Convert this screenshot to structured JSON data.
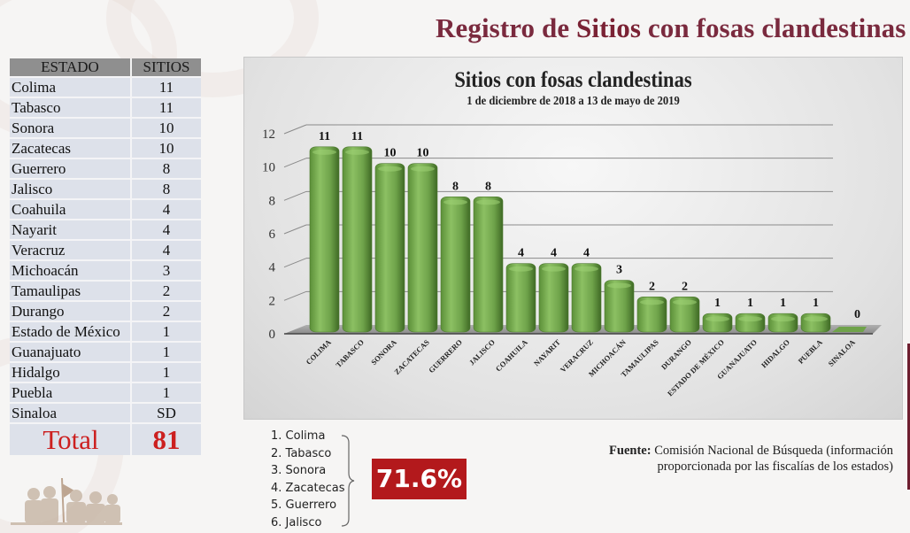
{
  "header": {
    "title_pre": "Registro de ",
    "title_bold": "Sitios",
    "title_post": " con fosas clandestinas"
  },
  "table": {
    "headers": [
      "ESTADO",
      "SITIOS"
    ],
    "rows": [
      {
        "estado": "Colima",
        "sitios": "11"
      },
      {
        "estado": "Tabasco",
        "sitios": "11"
      },
      {
        "estado": "Sonora",
        "sitios": "10"
      },
      {
        "estado": "Zacatecas",
        "sitios": "10"
      },
      {
        "estado": "Guerrero",
        "sitios": "8"
      },
      {
        "estado": "Jalisco",
        "sitios": "8"
      },
      {
        "estado": "Coahuila",
        "sitios": "4"
      },
      {
        "estado": "Nayarit",
        "sitios": "4"
      },
      {
        "estado": "Veracruz",
        "sitios": "4"
      },
      {
        "estado": "Michoacán",
        "sitios": "3"
      },
      {
        "estado": "Tamaulipas",
        "sitios": "2"
      },
      {
        "estado": "Durango",
        "sitios": "2"
      },
      {
        "estado": "Estado de México",
        "sitios": "1"
      },
      {
        "estado": "Guanajuato",
        "sitios": "1"
      },
      {
        "estado": "Hidalgo",
        "sitios": "1"
      },
      {
        "estado": "Puebla",
        "sitios": "1"
      },
      {
        "estado": "Sinaloa",
        "sitios": "SD"
      }
    ],
    "total_label": "Total",
    "total_value": "81"
  },
  "chart_data": {
    "type": "bar",
    "title": "Sitios con fosas clandestinas",
    "subtitle": "1 de diciembre de 2018 a 13 de mayo de 2019",
    "categories": [
      "COLIMA",
      "TABASCO",
      "SONORA",
      "ZACATECAS",
      "GUERRERO",
      "JALISCO",
      "COAHUILA",
      "NAYARIT",
      "VERACRUZ",
      "MICHOACÁN",
      "TAMAULIPAS",
      "DURANGO",
      "ESTADO DE MÉXICO",
      "GUANAJUATO",
      "HIDALGO",
      "PUEBLA",
      "SINALOA"
    ],
    "values": [
      11,
      11,
      10,
      10,
      8,
      8,
      4,
      4,
      4,
      3,
      2,
      2,
      1,
      1,
      1,
      1,
      0
    ],
    "xlabel": "",
    "ylabel": "",
    "ylim": [
      0,
      12
    ],
    "yticks": [
      0,
      2,
      4,
      6,
      8,
      10,
      12
    ],
    "grid": true,
    "legend": "none",
    "bar_color": "#6fa34a",
    "style": "3d-cylinder"
  },
  "top_states": {
    "items": [
      "1. Colima",
      "2. Tabasco",
      "3. Sonora",
      "4. Zacatecas",
      "5. Guerrero",
      "6. Jalisco"
    ],
    "percent": "71.6%",
    "percent_color": "#b3191c"
  },
  "source": {
    "label": "Fuente:",
    "line1": " Comisión Nacional de Búsqueda (información",
    "line2": "proporcionada por las fiscalías de los estados)"
  },
  "colors": {
    "title": "#7a2a3e",
    "total": "#cc1f1f",
    "table_header": "#8f8f8f",
    "table_row": "#dde1ea"
  }
}
